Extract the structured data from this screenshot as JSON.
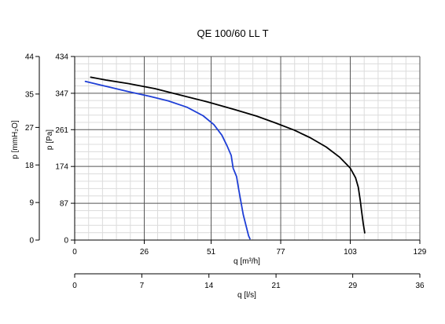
{
  "chart_data": {
    "type": "line",
    "title": "QE 100/60 LL T",
    "grid": true,
    "x_axis": {
      "label": "q [m³/h]",
      "ticks": [
        0,
        26,
        51,
        77,
        103,
        129
      ],
      "range": [
        0,
        129
      ]
    },
    "x2_axis": {
      "label": "q [l/s]",
      "ticks": [
        0,
        7,
        14,
        21,
        29,
        36
      ],
      "range": [
        0,
        36
      ]
    },
    "y_axis": {
      "label": "p [Pa]",
      "ticks": [
        0,
        87,
        174,
        261,
        347,
        434
      ],
      "range": [
        0,
        434
      ]
    },
    "y2_axis": {
      "label": "p [mmH₂O]",
      "ticks": [
        0,
        9,
        18,
        27,
        35,
        44
      ],
      "range": [
        0,
        44
      ]
    },
    "series": [
      {
        "color": "#000000",
        "points": [
          [
            6,
            385
          ],
          [
            12,
            378
          ],
          [
            20,
            370
          ],
          [
            30,
            358
          ],
          [
            40,
            342
          ],
          [
            50,
            326
          ],
          [
            60,
            308
          ],
          [
            68,
            293
          ],
          [
            75,
            277
          ],
          [
            82,
            260
          ],
          [
            88,
            242
          ],
          [
            94,
            220
          ],
          [
            99,
            196
          ],
          [
            103,
            170
          ],
          [
            105,
            147
          ],
          [
            106,
            125
          ],
          [
            106.7,
            95
          ],
          [
            107.2,
            70
          ],
          [
            107.8,
            40
          ],
          [
            108.4,
            17
          ]
        ]
      },
      {
        "color": "#1f3fd6",
        "points": [
          [
            4,
            375
          ],
          [
            12,
            363
          ],
          [
            20,
            351
          ],
          [
            28,
            340
          ],
          [
            35,
            329
          ],
          [
            42,
            314
          ],
          [
            48,
            294
          ],
          [
            52,
            273
          ],
          [
            55,
            248
          ],
          [
            57,
            222
          ],
          [
            58.5,
            200
          ],
          [
            59.2,
            170
          ],
          [
            60.5,
            150
          ],
          [
            61.3,
            120
          ],
          [
            62,
            95
          ],
          [
            63,
            60
          ],
          [
            64,
            35
          ],
          [
            65,
            10
          ],
          [
            65.5,
            3
          ]
        ]
      }
    ]
  }
}
